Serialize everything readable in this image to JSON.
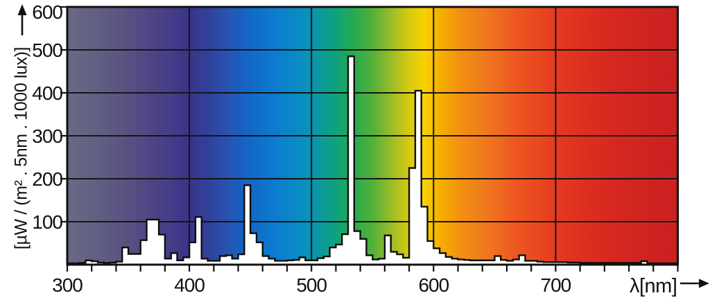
{
  "page": {
    "background": "#ffffff"
  },
  "chart_data": {
    "type": "area",
    "subtype": "spectral-power-distribution-histogram",
    "title": "",
    "xlabel": "λ[nm]",
    "ylabel": "[µW / (m² . 5nm . 1000 lux)]",
    "x_range": [
      300,
      800
    ],
    "y_range": [
      0,
      600
    ],
    "x_major_ticks": [
      300,
      400,
      500,
      600,
      700
    ],
    "x_minor_tick_step_nm": 20,
    "y_ticks": [
      100,
      200,
      300,
      400,
      500,
      600
    ],
    "grid": "on",
    "legend": "none",
    "bin_width_nm": 5,
    "wavelengths_nm": [
      300,
      305,
      310,
      315,
      320,
      325,
      330,
      335,
      340,
      345,
      350,
      355,
      360,
      365,
      370,
      375,
      380,
      385,
      390,
      395,
      400,
      405,
      410,
      415,
      420,
      425,
      430,
      435,
      440,
      445,
      450,
      455,
      460,
      465,
      470,
      475,
      480,
      485,
      490,
      495,
      500,
      505,
      510,
      515,
      520,
      525,
      530,
      535,
      540,
      545,
      550,
      555,
      560,
      565,
      570,
      575,
      580,
      585,
      590,
      595,
      600,
      605,
      610,
      615,
      620,
      625,
      630,
      635,
      640,
      645,
      650,
      655,
      660,
      665,
      670,
      675,
      680,
      685,
      690,
      695,
      700,
      705,
      710,
      715,
      720,
      725,
      730,
      735,
      740,
      745,
      750,
      755,
      760,
      765,
      770,
      775,
      780,
      785,
      790,
      795
    ],
    "values": [
      3,
      3,
      4,
      10,
      8,
      5,
      4,
      5,
      7,
      40,
      25,
      25,
      57,
      105,
      105,
      70,
      14,
      27,
      10,
      17,
      52,
      111,
      14,
      9,
      9,
      20,
      22,
      14,
      24,
      185,
      73,
      52,
      20,
      14,
      9,
      9,
      10,
      11,
      17,
      10,
      10,
      15,
      19,
      40,
      47,
      71,
      485,
      78,
      60,
      22,
      12,
      14,
      68,
      30,
      24,
      16,
      225,
      405,
      135,
      55,
      38,
      27,
      18,
      14,
      12,
      11,
      10,
      10,
      10,
      10,
      20,
      11,
      9,
      12,
      22,
      9,
      9,
      7,
      6,
      6,
      6,
      6,
      5,
      5,
      4,
      4,
      4,
      4,
      4,
      4,
      4,
      4,
      4,
      4,
      8,
      3,
      3,
      3,
      3,
      3
    ],
    "colors": {
      "background": "#ffffff",
      "grid": "#151515",
      "axis": "#101010",
      "curve_fill": "#ffffff",
      "curve_stroke": "#0e0e0e",
      "text": "#111111"
    },
    "gradient_stops": [
      {
        "nm": 300,
        "color": "#696a83"
      },
      {
        "nm": 340,
        "color": "#5b5781"
      },
      {
        "nm": 375,
        "color": "#4b4285"
      },
      {
        "nm": 400,
        "color": "#3a3488"
      },
      {
        "nm": 415,
        "color": "#31409a"
      },
      {
        "nm": 430,
        "color": "#2852b0"
      },
      {
        "nm": 450,
        "color": "#1168c8"
      },
      {
        "nm": 470,
        "color": "#0c7cce"
      },
      {
        "nm": 490,
        "color": "#0a8cc4"
      },
      {
        "nm": 505,
        "color": "#0b97a4"
      },
      {
        "nm": 520,
        "color": "#0fa37b"
      },
      {
        "nm": 535,
        "color": "#27aa4e"
      },
      {
        "nm": 550,
        "color": "#52b13a"
      },
      {
        "nm": 565,
        "color": "#9abb28"
      },
      {
        "nm": 580,
        "color": "#d8ca10"
      },
      {
        "nm": 592,
        "color": "#f7d300"
      },
      {
        "nm": 605,
        "color": "#f6b000"
      },
      {
        "nm": 620,
        "color": "#f39310"
      },
      {
        "nm": 640,
        "color": "#f07c1d"
      },
      {
        "nm": 665,
        "color": "#ed5a20"
      },
      {
        "nm": 700,
        "color": "#e63a20"
      },
      {
        "nm": 745,
        "color": "#d62820"
      },
      {
        "nm": 800,
        "color": "#c92121"
      }
    ]
  }
}
